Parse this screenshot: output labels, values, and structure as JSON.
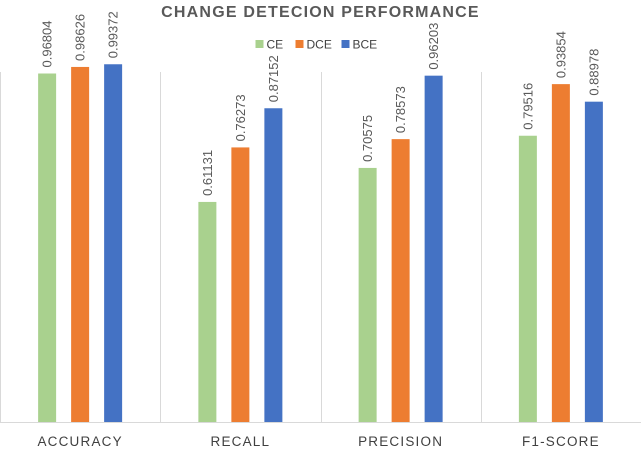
{
  "chart_data": {
    "type": "bar",
    "title": "CHANGE DETECION PERFORMANCE",
    "xlabel": "",
    "ylabel": "",
    "categories": [
      "ACCURACY",
      "RECALL",
      "PRECISION",
      "F1-SCORE"
    ],
    "series": [
      {
        "name": "CE",
        "color": "#a9d18e",
        "values": [
          0.96804,
          0.61131,
          0.70575,
          0.79516
        ]
      },
      {
        "name": "DCE",
        "color": "#ed7d31",
        "values": [
          0.98626,
          0.76273,
          0.78573,
          0.93854
        ]
      },
      {
        "name": "BCE",
        "color": "#4472c4",
        "values": [
          0.99372,
          0.87152,
          0.96203,
          0.88978
        ]
      }
    ],
    "ylim": [
      0,
      1.0
    ],
    "grid": false,
    "legend": "top-center",
    "category_dividers": true,
    "data_labels": true,
    "data_label_rotation": "vertical"
  }
}
